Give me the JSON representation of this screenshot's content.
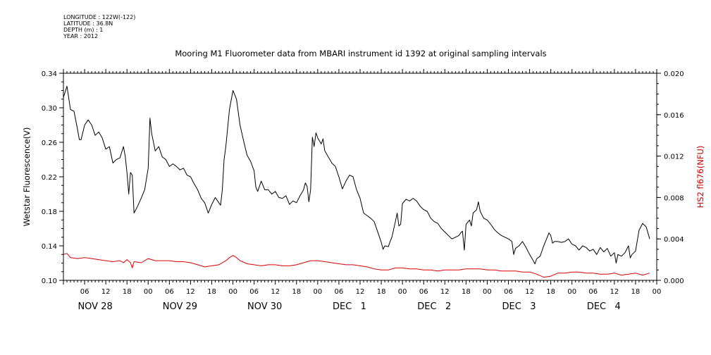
{
  "header_meta": {
    "longitude": "LONGITUDE : 122W(-122)",
    "latitude": "LATITUDE : 36.8N",
    "depth": "DEPTH (m) : 1",
    "year": "YEAR : 2012"
  },
  "chart_data": {
    "type": "line",
    "title": "Mooring M1 Fluorometer data from MBARI instrument id 1392 at original sampling intervals",
    "ylabel": "Wetstar Fluorescence(V)",
    "y2label": "HS2 fl676(NFU)",
    "ylim": [
      0.1,
      0.34
    ],
    "y2lim": [
      0.0,
      0.02
    ],
    "xlim_hours": [
      0,
      168
    ],
    "y_ticks": [
      "0.10",
      "0.14",
      "0.18",
      "0.22",
      "0.26",
      "0.30",
      "0.34"
    ],
    "y2_ticks": [
      "0.000",
      "0.004",
      "0.008",
      "0.012",
      "0.016",
      "0.020"
    ],
    "hour_ticks": [
      {
        "h": 6,
        "label": "06"
      },
      {
        "h": 12,
        "label": "12"
      },
      {
        "h": 18,
        "label": "18"
      },
      {
        "h": 24,
        "label": "00"
      },
      {
        "h": 30,
        "label": "06"
      },
      {
        "h": 36,
        "label": "12"
      },
      {
        "h": 42,
        "label": "18"
      },
      {
        "h": 48,
        "label": "00"
      },
      {
        "h": 54,
        "label": "06"
      },
      {
        "h": 60,
        "label": "12"
      },
      {
        "h": 66,
        "label": "18"
      },
      {
        "h": 72,
        "label": "00"
      },
      {
        "h": 78,
        "label": "06"
      },
      {
        "h": 84,
        "label": "12"
      },
      {
        "h": 90,
        "label": "18"
      },
      {
        "h": 96,
        "label": "00"
      },
      {
        "h": 102,
        "label": "06"
      },
      {
        "h": 108,
        "label": "12"
      },
      {
        "h": 114,
        "label": "18"
      },
      {
        "h": 120,
        "label": "00"
      },
      {
        "h": 126,
        "label": "06"
      },
      {
        "h": 132,
        "label": "12"
      },
      {
        "h": 138,
        "label": "18"
      },
      {
        "h": 144,
        "label": "00"
      },
      {
        "h": 150,
        "label": "06"
      },
      {
        "h": 156,
        "label": "12"
      },
      {
        "h": 162,
        "label": "18"
      },
      {
        "h": 168,
        "label": "00"
      }
    ],
    "date_labels": [
      {
        "h": 9,
        "label": "NOV 28"
      },
      {
        "h": 33,
        "label": "NOV 29"
      },
      {
        "h": 57,
        "label": "NOV 30"
      },
      {
        "h": 81,
        "label": "DEC   1"
      },
      {
        "h": 105,
        "label": "DEC   2"
      },
      {
        "h": 129,
        "label": "DEC   3"
      },
      {
        "h": 153,
        "label": "DEC   4"
      }
    ],
    "series": [
      {
        "axis": "left",
        "color": "#000000",
        "points": [
          [
            0,
            0.312
          ],
          [
            1,
            0.325
          ],
          [
            2,
            0.298
          ],
          [
            3,
            0.296
          ],
          [
            4,
            0.275
          ],
          [
            4.5,
            0.263
          ],
          [
            5,
            0.263
          ],
          [
            6,
            0.28
          ],
          [
            7,
            0.286
          ],
          [
            8,
            0.28
          ],
          [
            9,
            0.268
          ],
          [
            10,
            0.272
          ],
          [
            11,
            0.265
          ],
          [
            12,
            0.252
          ],
          [
            13,
            0.255
          ],
          [
            14,
            0.236
          ],
          [
            15,
            0.24
          ],
          [
            16,
            0.242
          ],
          [
            17,
            0.255
          ],
          [
            17.5,
            0.244
          ],
          [
            18,
            0.225
          ],
          [
            18.5,
            0.2
          ],
          [
            19,
            0.225
          ],
          [
            19.5,
            0.222
          ],
          [
            20,
            0.178
          ],
          [
            21,
            0.186
          ],
          [
            22,
            0.195
          ],
          [
            23,
            0.205
          ],
          [
            24,
            0.23
          ],
          [
            24.5,
            0.288
          ],
          [
            25,
            0.27
          ],
          [
            26,
            0.25
          ],
          [
            27,
            0.255
          ],
          [
            28,
            0.243
          ],
          [
            29,
            0.24
          ],
          [
            30,
            0.232
          ],
          [
            31,
            0.235
          ],
          [
            32,
            0.232
          ],
          [
            33,
            0.228
          ],
          [
            34,
            0.23
          ],
          [
            35,
            0.222
          ],
          [
            36,
            0.22
          ],
          [
            37,
            0.212
          ],
          [
            38,
            0.205
          ],
          [
            39,
            0.195
          ],
          [
            40,
            0.19
          ],
          [
            41,
            0.178
          ],
          [
            42,
            0.188
          ],
          [
            43,
            0.196
          ],
          [
            44,
            0.19
          ],
          [
            44.5,
            0.187
          ],
          [
            45,
            0.205
          ],
          [
            45.5,
            0.24
          ],
          [
            46,
            0.255
          ],
          [
            47,
            0.298
          ],
          [
            48,
            0.32
          ],
          [
            49,
            0.31
          ],
          [
            50,
            0.28
          ],
          [
            51,
            0.262
          ],
          [
            52,
            0.245
          ],
          [
            53,
            0.238
          ],
          [
            54,
            0.227
          ],
          [
            54.5,
            0.208
          ],
          [
            55,
            0.203
          ],
          [
            56,
            0.215
          ],
          [
            57,
            0.205
          ],
          [
            58,
            0.205
          ],
          [
            59,
            0.2
          ],
          [
            60,
            0.203
          ],
          [
            61,
            0.196
          ],
          [
            62,
            0.195
          ],
          [
            63,
            0.198
          ],
          [
            64,
            0.188
          ],
          [
            65,
            0.192
          ],
          [
            66,
            0.19
          ],
          [
            67,
            0.198
          ],
          [
            68,
            0.205
          ],
          [
            68.5,
            0.213
          ],
          [
            69,
            0.209
          ],
          [
            69.5,
            0.191
          ],
          [
            70,
            0.205
          ],
          [
            70.5,
            0.266
          ],
          [
            71,
            0.255
          ],
          [
            71.5,
            0.271
          ],
          [
            72,
            0.265
          ],
          [
            73,
            0.258
          ],
          [
            73.5,
            0.264
          ],
          [
            74,
            0.25
          ],
          [
            75,
            0.243
          ],
          [
            76,
            0.236
          ],
          [
            77,
            0.232
          ],
          [
            78,
            0.22
          ],
          [
            79,
            0.206
          ],
          [
            80,
            0.215
          ],
          [
            81,
            0.222
          ],
          [
            82,
            0.22
          ],
          [
            83,
            0.205
          ],
          [
            84,
            0.195
          ],
          [
            85,
            0.178
          ],
          [
            86,
            0.175
          ],
          [
            87,
            0.172
          ],
          [
            88,
            0.168
          ],
          [
            89,
            0.156
          ],
          [
            90,
            0.144
          ],
          [
            90.5,
            0.136
          ],
          [
            91,
            0.14
          ],
          [
            92,
            0.139
          ],
          [
            92.5,
            0.145
          ],
          [
            93,
            0.15
          ],
          [
            94,
            0.168
          ],
          [
            94.5,
            0.178
          ],
          [
            95,
            0.163
          ],
          [
            95.5,
            0.165
          ],
          [
            96,
            0.189
          ],
          [
            97,
            0.194
          ],
          [
            98,
            0.192
          ],
          [
            99,
            0.195
          ],
          [
            100,
            0.192
          ],
          [
            101,
            0.186
          ],
          [
            102,
            0.182
          ],
          [
            103,
            0.18
          ],
          [
            104,
            0.172
          ],
          [
            105,
            0.168
          ],
          [
            106,
            0.166
          ],
          [
            107,
            0.16
          ],
          [
            108,
            0.156
          ],
          [
            109,
            0.152
          ],
          [
            110,
            0.148
          ],
          [
            111,
            0.15
          ],
          [
            112,
            0.152
          ],
          [
            112.5,
            0.155
          ],
          [
            113,
            0.157
          ],
          [
            113.5,
            0.135
          ],
          [
            114,
            0.165
          ],
          [
            115,
            0.17
          ],
          [
            115.5,
            0.163
          ],
          [
            116,
            0.178
          ],
          [
            117,
            0.182
          ],
          [
            117.5,
            0.191
          ],
          [
            118,
            0.18
          ],
          [
            119,
            0.172
          ],
          [
            120,
            0.17
          ],
          [
            121,
            0.165
          ],
          [
            122,
            0.159
          ],
          [
            123,
            0.155
          ],
          [
            124,
            0.152
          ],
          [
            125,
            0.15
          ],
          [
            126,
            0.148
          ],
          [
            127,
            0.145
          ],
          [
            127.5,
            0.13
          ],
          [
            128,
            0.137
          ],
          [
            129,
            0.14
          ],
          [
            130,
            0.145
          ],
          [
            131,
            0.138
          ],
          [
            132,
            0.13
          ],
          [
            133,
            0.123
          ],
          [
            133.5,
            0.119
          ],
          [
            134,
            0.125
          ],
          [
            135,
            0.128
          ],
          [
            136,
            0.14
          ],
          [
            137,
            0.15
          ],
          [
            137.5,
            0.155
          ],
          [
            138,
            0.152
          ],
          [
            138.5,
            0.143
          ],
          [
            139,
            0.145
          ],
          [
            140,
            0.145
          ],
          [
            141,
            0.144
          ],
          [
            142,
            0.145
          ],
          [
            143,
            0.148
          ],
          [
            144,
            0.142
          ],
          [
            145,
            0.14
          ],
          [
            146,
            0.135
          ],
          [
            147,
            0.14
          ],
          [
            148,
            0.138
          ],
          [
            149,
            0.134
          ],
          [
            150,
            0.136
          ],
          [
            151,
            0.13
          ],
          [
            152,
            0.138
          ],
          [
            153,
            0.133
          ],
          [
            154,
            0.137
          ],
          [
            155,
            0.128
          ],
          [
            156,
            0.132
          ],
          [
            156.5,
            0.12
          ],
          [
            157,
            0.13
          ],
          [
            158,
            0.128
          ],
          [
            159,
            0.132
          ],
          [
            160,
            0.14
          ],
          [
            160.5,
            0.126
          ],
          [
            161,
            0.13
          ],
          [
            162,
            0.134
          ],
          [
            163,
            0.158
          ],
          [
            164,
            0.166
          ],
          [
            165,
            0.162
          ],
          [
            166,
            0.148
          ]
        ]
      },
      {
        "axis": "right",
        "color": "#e00000",
        "points": [
          [
            0,
            0.0025
          ],
          [
            1,
            0.0026
          ],
          [
            2,
            0.0022
          ],
          [
            4,
            0.0021
          ],
          [
            6,
            0.0022
          ],
          [
            8,
            0.0021
          ],
          [
            10,
            0.002
          ],
          [
            12,
            0.0019
          ],
          [
            14,
            0.0018
          ],
          [
            16,
            0.0019
          ],
          [
            17,
            0.0017
          ],
          [
            18,
            0.002
          ],
          [
            19,
            0.0017
          ],
          [
            19.5,
            0.0012
          ],
          [
            20,
            0.0018
          ],
          [
            22,
            0.0017
          ],
          [
            24,
            0.0021
          ],
          [
            26,
            0.0019
          ],
          [
            28,
            0.0019
          ],
          [
            30,
            0.0019
          ],
          [
            32,
            0.0018
          ],
          [
            34,
            0.0018
          ],
          [
            36,
            0.0017
          ],
          [
            38,
            0.0015
          ],
          [
            40,
            0.0013
          ],
          [
            42,
            0.0014
          ],
          [
            44,
            0.0015
          ],
          [
            46,
            0.0019
          ],
          [
            47,
            0.0022
          ],
          [
            48,
            0.0024
          ],
          [
            49,
            0.0022
          ],
          [
            50,
            0.0019
          ],
          [
            52,
            0.0016
          ],
          [
            54,
            0.0015
          ],
          [
            56,
            0.0014
          ],
          [
            58,
            0.0015
          ],
          [
            60,
            0.0015
          ],
          [
            62,
            0.0014
          ],
          [
            64,
            0.0014
          ],
          [
            66,
            0.0015
          ],
          [
            68,
            0.0017
          ],
          [
            70,
            0.0019
          ],
          [
            72,
            0.0019
          ],
          [
            74,
            0.0018
          ],
          [
            76,
            0.0017
          ],
          [
            78,
            0.0016
          ],
          [
            80,
            0.0015
          ],
          [
            82,
            0.0015
          ],
          [
            84,
            0.0014
          ],
          [
            86,
            0.0013
          ],
          [
            88,
            0.0011
          ],
          [
            90,
            0.001
          ],
          [
            92,
            0.001
          ],
          [
            94,
            0.0012
          ],
          [
            96,
            0.0012
          ],
          [
            98,
            0.0011
          ],
          [
            100,
            0.0011
          ],
          [
            102,
            0.001
          ],
          [
            104,
            0.001
          ],
          [
            106,
            0.0009
          ],
          [
            108,
            0.001
          ],
          [
            110,
            0.001
          ],
          [
            112,
            0.001
          ],
          [
            114,
            0.0011
          ],
          [
            116,
            0.0011
          ],
          [
            118,
            0.0011
          ],
          [
            120,
            0.001
          ],
          [
            122,
            0.001
          ],
          [
            124,
            0.0009
          ],
          [
            126,
            0.0009
          ],
          [
            128,
            0.0009
          ],
          [
            130,
            0.0008
          ],
          [
            132,
            0.0008
          ],
          [
            134,
            0.0006
          ],
          [
            136,
            0.0003
          ],
          [
            138,
            0.0004
          ],
          [
            140,
            0.0007
          ],
          [
            142,
            0.0007
          ],
          [
            144,
            0.0008
          ],
          [
            146,
            0.0008
          ],
          [
            148,
            0.0007
          ],
          [
            150,
            0.0007
          ],
          [
            152,
            0.0006
          ],
          [
            154,
            0.0006
          ],
          [
            156,
            0.0007
          ],
          [
            158,
            0.0005
          ],
          [
            160,
            0.0006
          ],
          [
            162,
            0.0007
          ],
          [
            164,
            0.0005
          ],
          [
            166,
            0.0007
          ]
        ]
      }
    ]
  }
}
